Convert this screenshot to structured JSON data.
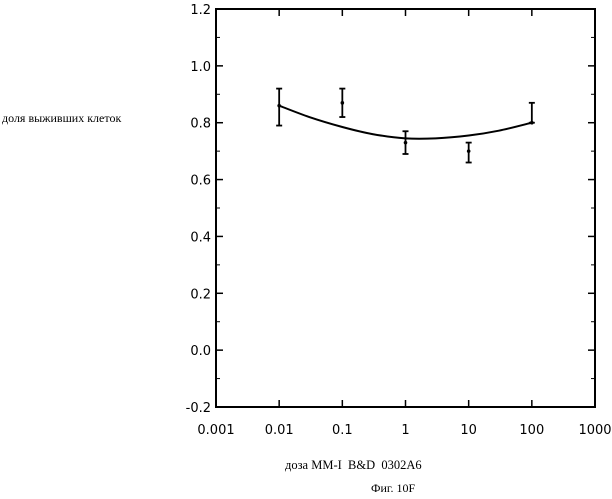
{
  "chart_data": {
    "type": "line",
    "title": "",
    "xlabel": "доза MM-I  B&D  0302A6",
    "ylabel": "доля выживших клеток",
    "caption": "Фиг. 10F",
    "x_scale": "log",
    "xlim": [
      0.001,
      1000
    ],
    "ylim": [
      -0.2,
      1.2
    ],
    "x_ticks": [
      0.001,
      0.01,
      0.1,
      1,
      10,
      100,
      1000
    ],
    "x_tick_labels": [
      "0.001",
      "0.01",
      "0.1",
      "1",
      "10",
      "100",
      "1000"
    ],
    "y_ticks": [
      -0.2,
      0.0,
      0.2,
      0.4,
      0.6,
      0.8,
      1.0,
      1.2
    ],
    "y_tick_labels": [
      "-0.2",
      "0.0",
      "0.2",
      "0.4",
      "0.6",
      "0.8",
      "1.0",
      "1.2"
    ],
    "grid": false,
    "points": [
      {
        "x": 0.01,
        "y": 0.86,
        "err_low": 0.79,
        "err_high": 0.92
      },
      {
        "x": 0.1,
        "y": 0.87,
        "err_low": 0.82,
        "err_high": 0.92
      },
      {
        "x": 1,
        "y": 0.73,
        "err_low": 0.69,
        "err_high": 0.77
      },
      {
        "x": 10,
        "y": 0.7,
        "err_low": 0.66,
        "err_high": 0.73
      },
      {
        "x": 100,
        "y": 0.8,
        "err_low": 0.8,
        "err_high": 0.87
      }
    ],
    "fit_curve": {
      "x": [
        0.01,
        0.03,
        0.1,
        0.3,
        1,
        3,
        10,
        30,
        100
      ],
      "y": [
        0.86,
        0.82,
        0.785,
        0.76,
        0.745,
        0.745,
        0.755,
        0.772,
        0.8
      ]
    }
  }
}
